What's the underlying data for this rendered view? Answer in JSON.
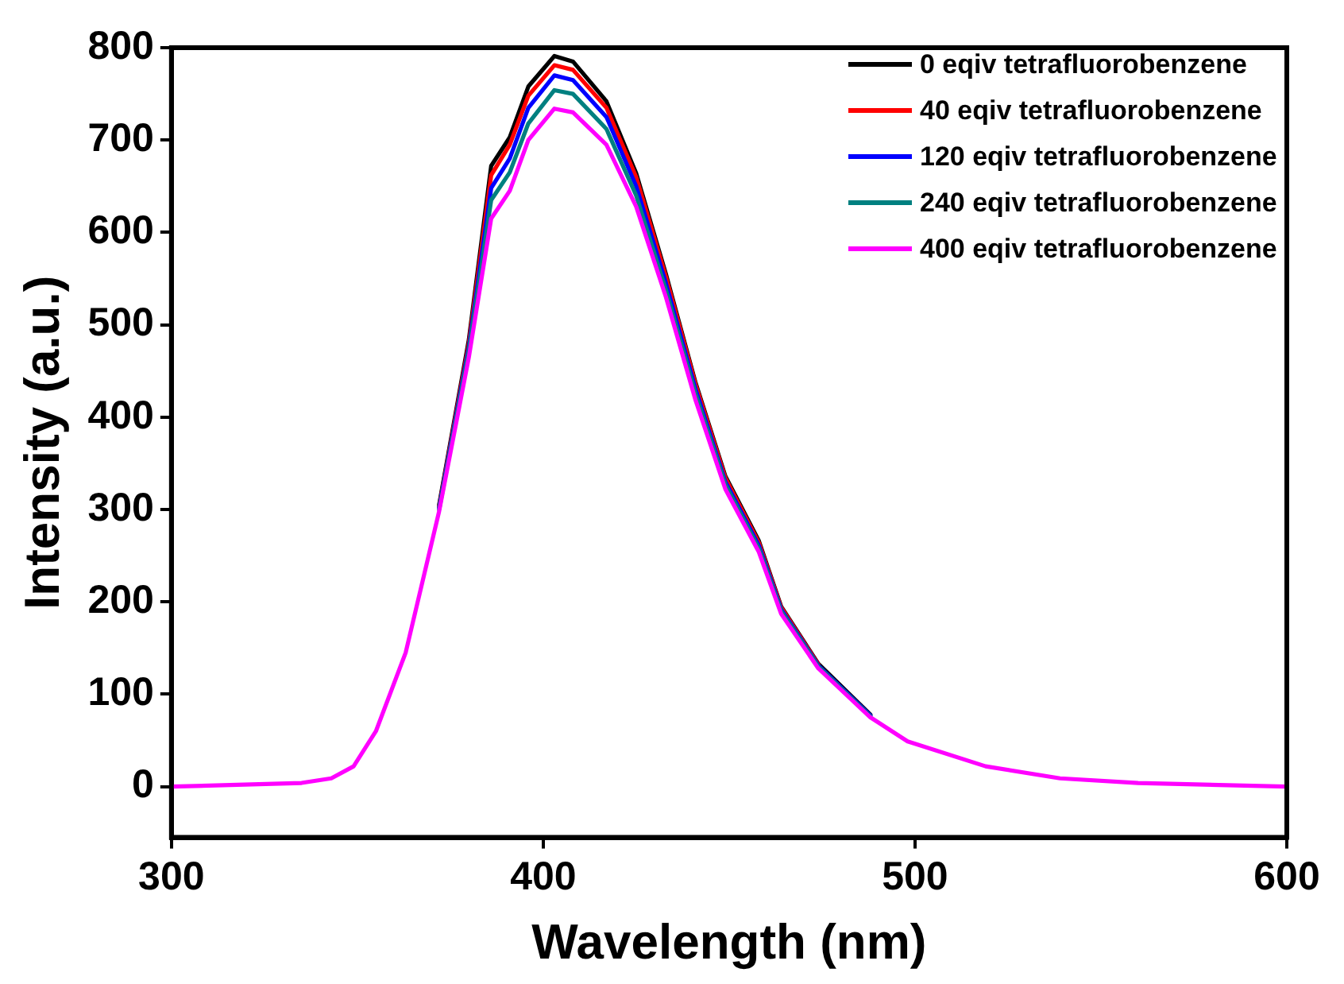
{
  "chart_data": {
    "type": "line",
    "xlabel": "Wavelength (nm)",
    "ylabel": "Intensity (a.u.)",
    "x": [
      300,
      335,
      343,
      349,
      355,
      363,
      372,
      380,
      386,
      391,
      396,
      403,
      408,
      417,
      425,
      433,
      441,
      449,
      458,
      464,
      474,
      488,
      498,
      519,
      539,
      560,
      600
    ],
    "series": [
      {
        "name": "0 eqiv tetrafluorobenzene",
        "color": "#000000",
        "values": [
          null,
          null,
          null,
          null,
          null,
          null,
          305,
          484,
          672,
          703,
          758,
          791,
          785,
          742,
          664,
          555,
          437,
          336,
          266,
          195,
          133,
          78,
          null,
          null,
          null,
          null,
          null
        ]
      },
      {
        "name": "40 eqiv tetrafluorobenzene",
        "color": "#ff0000",
        "values": [
          null,
          null,
          null,
          null,
          null,
          null,
          303,
          480,
          662,
          695,
          748,
          781,
          776,
          735,
          660,
          552,
          435,
          334,
          264,
          194,
          132,
          null,
          null,
          null,
          null,
          null,
          null
        ]
      },
      {
        "name": "120 eqiv tetrafluorobenzene",
        "color": "#0000ff",
        "values": [
          null,
          null,
          null,
          null,
          null,
          null,
          302,
          476,
          648,
          680,
          735,
          770,
          765,
          725,
          650,
          545,
          430,
          330,
          261,
          192,
          131,
          77,
          null,
          null,
          null,
          null,
          null
        ]
      },
      {
        "name": "240 eqiv tetrafluorobenzene",
        "color": "#008080",
        "values": [
          null,
          null,
          null,
          null,
          null,
          null,
          300,
          472,
          635,
          665,
          718,
          754,
          750,
          712,
          640,
          538,
          425,
          327,
          258,
          190,
          130,
          76,
          null,
          null,
          null,
          null,
          null
        ]
      },
      {
        "name": "400 eqiv tetrafluorobenzene",
        "color": "#ff00ff",
        "values": [
          0,
          4,
          9,
          22,
          60,
          145,
          298,
          465,
          615,
          645,
          700,
          734,
          730,
          695,
          628,
          530,
          418,
          322,
          254,
          187,
          128,
          75,
          49,
          22,
          9,
          4,
          0
        ]
      }
    ],
    "xlim": [
      300,
      600
    ],
    "xticks": [
      300,
      400,
      500,
      600
    ],
    "ylim": [
      -55,
      800
    ],
    "yticks": [
      0,
      100,
      200,
      300,
      400,
      500,
      600,
      700,
      800
    ],
    "grid": false,
    "legend": "top right",
    "marker": "none",
    "line_style": "solid"
  }
}
